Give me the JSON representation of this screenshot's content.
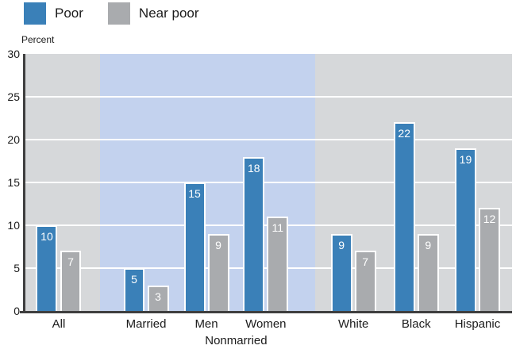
{
  "legend": {
    "items": [
      {
        "label": "Poor",
        "color": "#3a80b8"
      },
      {
        "label": "Near poor",
        "color": "#a9abae"
      }
    ]
  },
  "chart_data": {
    "type": "bar",
    "title": "",
    "xlabel": "",
    "ylabel": "Percent",
    "ylim": [
      0,
      30
    ],
    "yticks": [
      30,
      25,
      20,
      15,
      10,
      5,
      0
    ],
    "grid": "horizontal white gridlines every 5 units",
    "legend_position": "top-left",
    "categories": [
      "All",
      "Married",
      "Men",
      "Women",
      "White",
      "Black",
      "Hispanic"
    ],
    "series": [
      {
        "name": "Poor",
        "color": "#3a80b8",
        "values": [
          10,
          5,
          15,
          18,
          9,
          22,
          19
        ]
      },
      {
        "name": "Near poor",
        "color": "#a9abae",
        "values": [
          7,
          3,
          9,
          11,
          7,
          9,
          12
        ]
      }
    ],
    "value_labels": "white numbers inside bar tops",
    "group_label": {
      "text": "Nonmarried",
      "spans": [
        "Men",
        "Women"
      ]
    },
    "highlight_band": {
      "categories": [
        "Married",
        "Men",
        "Women"
      ],
      "color": "#c3d2ee"
    },
    "plot_background": "#d6d8da",
    "axis_color": "#3f3f3f"
  }
}
